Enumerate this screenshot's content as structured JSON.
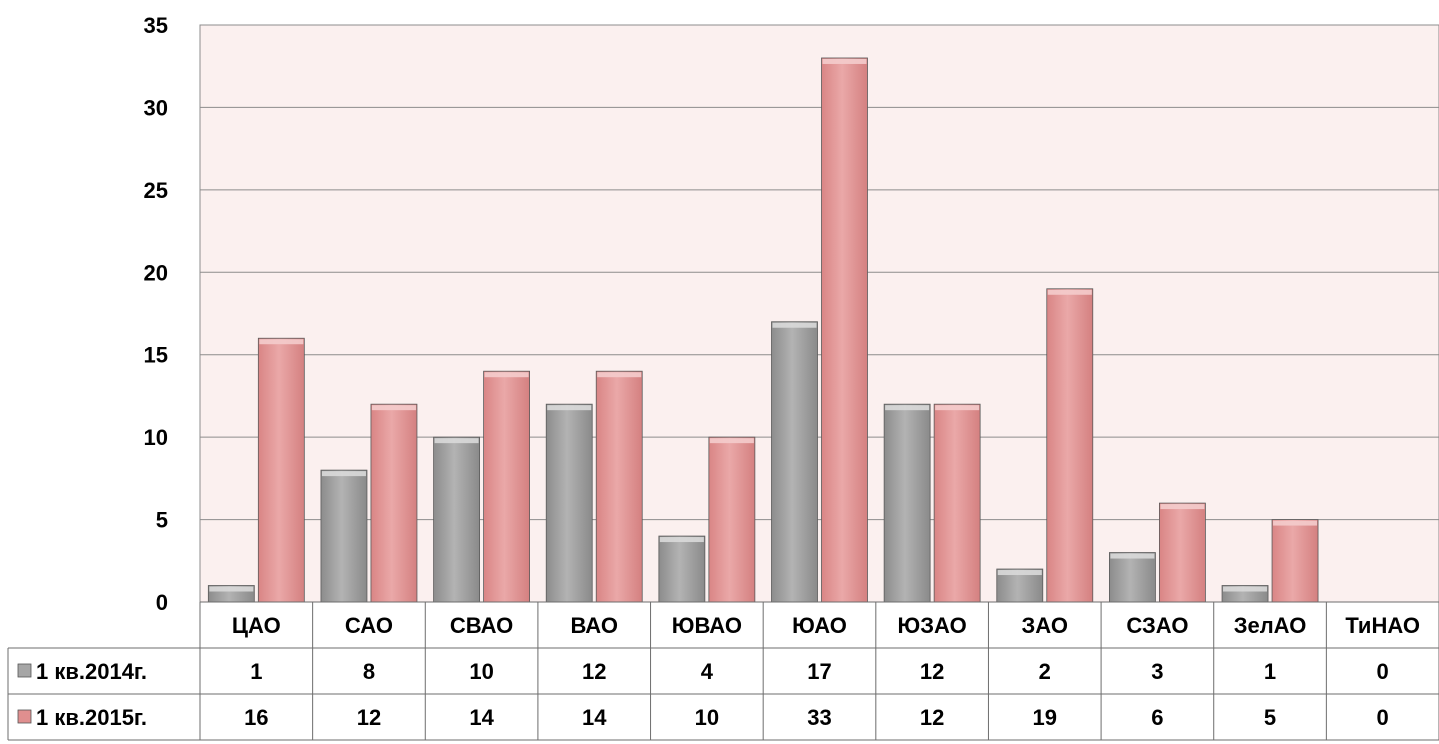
{
  "chart_data": {
    "type": "bar",
    "categories": [
      "ЦАО",
      "САО",
      "СВАО",
      "ВАО",
      "ЮВАО",
      "ЮАО",
      "ЮЗАО",
      "ЗАО",
      "СЗАО",
      "ЗелАО",
      "ТиНАО"
    ],
    "series": [
      {
        "name": "1 кв.2014г.",
        "values": [
          1,
          8,
          10,
          12,
          4,
          17,
          12,
          2,
          3,
          1,
          0
        ],
        "color": "#a6a6a6"
      },
      {
        "name": "1 кв.2015г.",
        "values": [
          16,
          12,
          14,
          14,
          10,
          33,
          12,
          19,
          6,
          5,
          0
        ],
        "color": "#e6a1a1"
      }
    ],
    "ylim": [
      0,
      35
    ],
    "yticks": [
      0,
      5,
      10,
      15,
      20,
      25,
      30,
      35
    ],
    "grid": true,
    "legend": "data-table",
    "plot_background": "#fbf0ef"
  }
}
